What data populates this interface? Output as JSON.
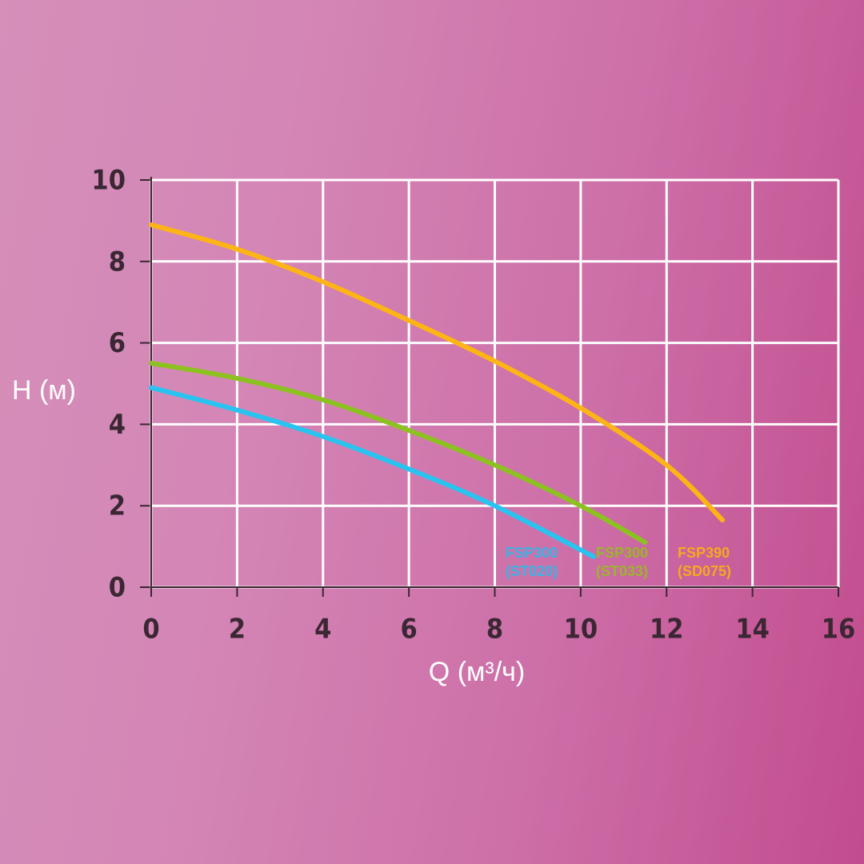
{
  "chart_data": {
    "type": "line",
    "x_label": "Q (м³/ч)",
    "y_label": "H (м)",
    "xlim": [
      0,
      16
    ],
    "xticks": [
      0,
      2,
      4,
      6,
      8,
      10,
      12,
      14,
      16
    ],
    "ylim": [
      0,
      10
    ],
    "yticks": [
      0,
      2,
      4,
      6,
      8,
      10
    ],
    "grid": true,
    "series": [
      {
        "name": "FSP300\n(ST020)",
        "color": "#29c3f0",
        "label_color": "#35b6e6",
        "x": [
          0,
          2,
          4,
          6,
          8,
          10.3
        ],
        "values": [
          4.9,
          4.35,
          3.7,
          2.9,
          2.0,
          0.75
        ]
      },
      {
        "name": "FSP300\n(ST033)",
        "color": "#8cc21f",
        "label_color": "#9bb52a",
        "x": [
          0,
          2,
          4,
          6,
          8,
          10,
          11.5
        ],
        "values": [
          5.5,
          5.13,
          4.6,
          3.85,
          3.0,
          2.0,
          1.1
        ]
      },
      {
        "name": "FSP390\n(SD075)",
        "color": "#fdb515",
        "label_color": "#f7a91c",
        "x": [
          0,
          2,
          4,
          6,
          8,
          10,
          12,
          13.3
        ],
        "values": [
          8.9,
          8.3,
          7.5,
          6.55,
          5.55,
          4.4,
          3.0,
          1.65
        ]
      }
    ]
  }
}
